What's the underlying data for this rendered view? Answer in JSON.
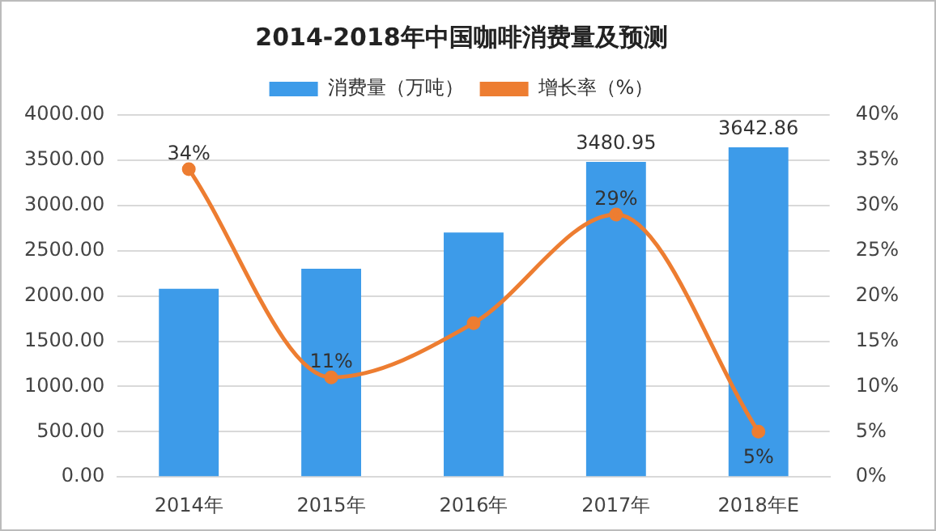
{
  "chart_data": {
    "type": "bar",
    "title": "2014-2018年中国咖啡消费量及预测",
    "categories": [
      "2014年",
      "2015年",
      "2016年",
      "2017年",
      "2018年E"
    ],
    "series": [
      {
        "name": "消费量（万吨）",
        "color": "#3d9be9",
        "values": [
          2080,
          2300,
          2700,
          3480.95,
          3642.86
        ],
        "value_labels": [
          null,
          null,
          null,
          "3480.95",
          "3642.86"
        ]
      },
      {
        "name": "增长率（%）",
        "type": "line",
        "axis": "y2",
        "color": "#ed7d31",
        "marker": "circle",
        "values": [
          34,
          11,
          17,
          29,
          5
        ],
        "value_labels": [
          "34%",
          "11%",
          null,
          "29%",
          "5%"
        ]
      }
    ],
    "ylim": [
      0,
      4000
    ],
    "yticks": [
      {
        "value": 0,
        "label": "0.00"
      },
      {
        "value": 500,
        "label": "500.00"
      },
      {
        "value": 1000,
        "label": "1000.00"
      },
      {
        "value": 1500,
        "label": "1500.00"
      },
      {
        "value": 2000,
        "label": "2000.00"
      },
      {
        "value": 2500,
        "label": "2500.00"
      },
      {
        "value": 3000,
        "label": "3000.00"
      },
      {
        "value": 3500,
        "label": "3500.00"
      },
      {
        "value": 4000,
        "label": "4000.00"
      }
    ],
    "y2lim": [
      0,
      40
    ],
    "y2ticks": [
      {
        "value": 0,
        "label": "0%"
      },
      {
        "value": 5,
        "label": "5%"
      },
      {
        "value": 10,
        "label": "10%"
      },
      {
        "value": 15,
        "label": "15%"
      },
      {
        "value": 20,
        "label": "20%"
      },
      {
        "value": 25,
        "label": "25%"
      },
      {
        "value": 30,
        "label": "30%"
      },
      {
        "value": 35,
        "label": "35%"
      },
      {
        "value": 40,
        "label": "40%"
      }
    ],
    "grid": "y",
    "legend": "top"
  }
}
